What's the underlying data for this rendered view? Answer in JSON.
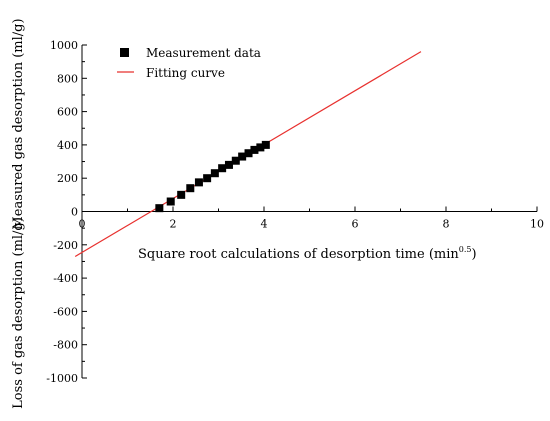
{
  "chart_data": {
    "type": "scatter",
    "xlim": [
      0,
      10
    ],
    "ylim": [
      -1000,
      1000
    ],
    "x_ticks": [
      0,
      2,
      4,
      6,
      8,
      10
    ],
    "y_ticks": [
      -1000,
      -800,
      -600,
      -400,
      -200,
      0,
      200,
      400,
      600,
      800,
      1000
    ],
    "xlabel": "Square root calculations of desorption time (min",
    "xlabel_sup": "0.5",
    "xlabel_end": ")",
    "ylabel_top": "Measured gas desorption (ml/g)",
    "ylabel_bottom": "Loss of gas desorption (ml/g)",
    "grid": false,
    "legend_position": "top-left",
    "series": [
      {
        "name": "Measurement data",
        "kind": "scatter",
        "marker": "square",
        "color": "#000000",
        "x": [
          1.7,
          1.95,
          2.18,
          2.38,
          2.57,
          2.75,
          2.92,
          3.08,
          3.23,
          3.38,
          3.52,
          3.66,
          3.79,
          3.92,
          4.04
        ],
        "y": [
          20,
          60,
          100,
          140,
          175,
          200,
          230,
          260,
          280,
          305,
          330,
          350,
          370,
          385,
          400
        ]
      },
      {
        "name": "Fitting curve",
        "kind": "line",
        "color": "#e8312f",
        "x": [
          -0.15,
          7.45
        ],
        "y": [
          -270,
          960
        ]
      }
    ]
  }
}
